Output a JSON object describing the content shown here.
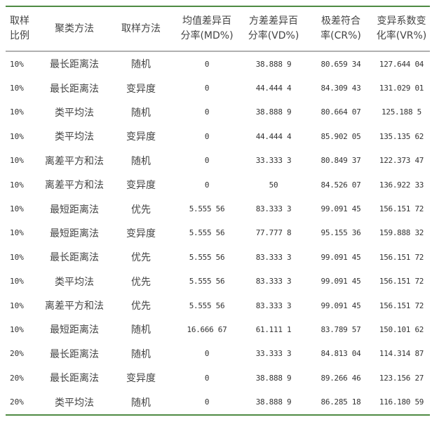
{
  "table": {
    "headers": [
      "取样\n比例",
      "聚类方法",
      "取样方法",
      "均值差异百\n分率(MD%)",
      "方差差异百\n分率(VD%)",
      "极差符合\n率(CR%)",
      "变异系数变\n化率(VR%)"
    ],
    "rows": [
      [
        "10%",
        "最长距离法",
        "随机",
        "0",
        "38.888 9",
        "80.659 34",
        "127.644 04"
      ],
      [
        "10%",
        "最长距离法",
        "变异度",
        "0",
        "44.444 4",
        "84.309 43",
        "131.029 01"
      ],
      [
        "10%",
        "类平均法",
        "随机",
        "0",
        "38.888 9",
        "80.664 07",
        "125.188 5"
      ],
      [
        "10%",
        "类平均法",
        "变异度",
        "0",
        "44.444 4",
        "85.902 05",
        "135.135 62"
      ],
      [
        "10%",
        "离差平方和法",
        "随机",
        "0",
        "33.333 3",
        "80.849 37",
        "122.373 47"
      ],
      [
        "10%",
        "离差平方和法",
        "变异度",
        "0",
        "50",
        "84.526 07",
        "136.922 33"
      ],
      [
        "10%",
        "最短距离法",
        "优先",
        "5.555 56",
        "83.333 3",
        "99.091 45",
        "156.151 72"
      ],
      [
        "10%",
        "最短距离法",
        "变异度",
        "5.555 56",
        "77.777 8",
        "95.155 36",
        "159.888 32"
      ],
      [
        "10%",
        "最长距离法",
        "优先",
        "5.555 56",
        "83.333 3",
        "99.091 45",
        "156.151 72"
      ],
      [
        "10%",
        "类平均法",
        "优先",
        "5.555 56",
        "83.333 3",
        "99.091 45",
        "156.151 72"
      ],
      [
        "10%",
        "离差平方和法",
        "优先",
        "5.555 56",
        "83.333 3",
        "99.091 45",
        "156.151 72"
      ],
      [
        "10%",
        "最短距离法",
        "随机",
        "16.666 67",
        "61.111 1",
        "83.789 57",
        "150.101 62"
      ],
      [
        "20%",
        "最长距离法",
        "随机",
        "0",
        "33.333 3",
        "84.813 04",
        "114.314 87"
      ],
      [
        "20%",
        "最长距离法",
        "变异度",
        "0",
        "38.888 9",
        "89.266 46",
        "123.156 27"
      ],
      [
        "20%",
        "类平均法",
        "随机",
        "0",
        "38.888 9",
        "86.285 18",
        "116.180 59"
      ]
    ]
  },
  "colors": {
    "rule": "#4f8a43",
    "header_rule": "#b0b0b0"
  }
}
